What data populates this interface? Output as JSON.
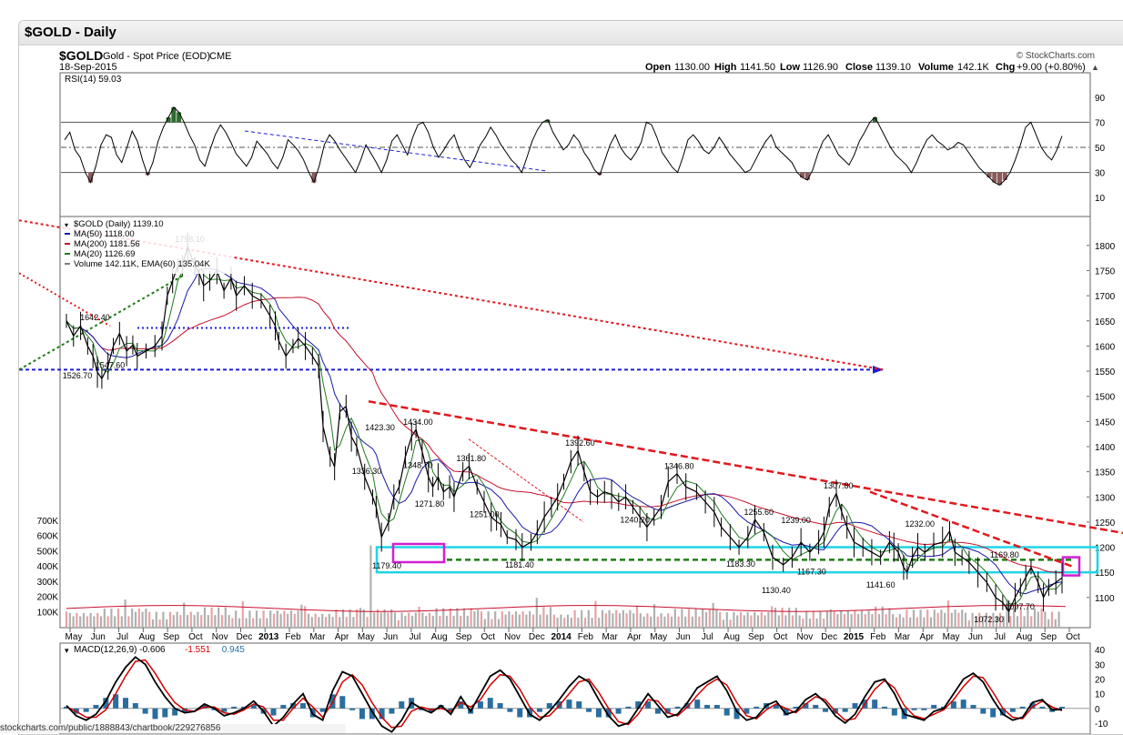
{
  "window": {
    "title": "$GOLD - Daily"
  },
  "header": {
    "symbol": "$GOLD",
    "description": "Gold - Spot Price (EOD)",
    "exchange": "CME",
    "date": "18-Sep-2015",
    "watermark": "© StockCharts.com",
    "quote": {
      "open_label": "Open",
      "open": "1130.00",
      "high_label": "High",
      "high": "1141.50",
      "low_label": "Low",
      "low": "1126.90",
      "close_label": "Close",
      "close": "1139.10",
      "volume_label": "Volume",
      "volume": "142.1K",
      "chg_label": "Chg",
      "chg": "+9.00 (+0.80%)"
    }
  },
  "status_bar": {
    "url": "stockcharts.com/public/1888843/chartbook/229276856"
  },
  "colors": {
    "price": "#000000",
    "ma50": "#1a1aa8",
    "ma200": "#c8102e",
    "ma20": "#1f7a1f",
    "trend_red": "#e0191e",
    "support_blue": "#1f1fd6",
    "support_green": "#1e7d14",
    "zone_cyan": "#1fd4e8",
    "marker_magenta": "#d21fd2",
    "volume_up": "#b0b0b0",
    "volume_down": "#e8a3a3",
    "macd": "#000000",
    "macd_signal": "#d40000",
    "histogram": "#2a6e9e"
  },
  "chart_data": [
    {
      "type": "line",
      "panel": "RSI",
      "title": "RSI(14) 59.03",
      "value": 59.03,
      "ylim": [
        0,
        100
      ],
      "yticks": [
        "90",
        "70",
        "50",
        "30",
        "10"
      ],
      "reference_lines": [
        70,
        50,
        30
      ],
      "series": [
        {
          "name": "RSI(14)",
          "values": [
            56,
            62,
            48,
            42,
            30,
            22,
            35,
            52,
            60,
            58,
            44,
            38,
            50,
            63,
            55,
            40,
            28,
            38,
            55,
            66,
            74,
            82,
            78,
            70,
            60,
            52,
            40,
            35,
            48,
            60,
            68,
            62,
            54,
            45,
            40,
            35,
            42,
            55,
            50,
            45,
            38,
            33,
            42,
            56,
            52,
            47,
            40,
            30,
            22,
            35,
            52,
            60,
            55,
            48,
            42,
            36,
            30,
            40,
            52,
            45,
            38,
            30,
            40,
            55,
            60,
            52,
            44,
            58,
            68,
            70,
            62,
            50,
            42,
            48,
            55,
            60,
            48,
            40,
            34,
            42,
            52,
            58,
            66,
            60,
            52,
            46,
            40,
            36,
            30,
            42,
            55,
            64,
            70,
            72,
            62,
            55,
            48,
            52,
            60,
            55,
            46,
            40,
            32,
            28,
            40,
            52,
            60,
            50,
            44,
            40,
            46,
            54,
            70,
            68,
            58,
            46,
            40,
            34,
            30,
            42,
            56,
            60,
            55,
            48,
            45,
            50,
            58,
            52,
            45,
            40,
            35,
            30,
            32,
            40,
            48,
            55,
            60,
            50,
            46,
            42,
            38,
            30,
            26,
            24,
            32,
            45,
            55,
            60,
            52,
            44,
            40,
            36,
            44,
            55,
            62,
            70,
            74,
            66,
            58,
            50,
            44,
            40,
            36,
            30,
            38,
            48,
            56,
            60,
            55,
            52,
            48,
            50,
            54,
            52,
            46,
            40,
            34,
            30,
            26,
            22,
            20,
            24,
            30,
            40,
            52,
            66,
            70,
            60,
            50,
            44,
            40,
            48,
            59.03
          ]
        }
      ],
      "dashed_trendline": "blue"
    },
    {
      "type": "line",
      "panel": "Price",
      "title": "$GOLD (Daily) 1139.10",
      "ylim": [
        1040,
        1825
      ],
      "yticks": [
        "1800",
        "1750",
        "1700",
        "1650",
        "1600",
        "1550",
        "1500",
        "1450",
        "1400",
        "1350",
        "1300",
        "1250",
        "1200",
        "1150",
        "1100"
      ],
      "x_labels": [
        "May",
        "Jun",
        "Jul",
        "Aug",
        "Sep",
        "Oct",
        "Nov",
        "Dec",
        "2013",
        "Feb",
        "Mar",
        "Apr",
        "May",
        "Jun",
        "Jul",
        "Aug",
        "Sep",
        "Oct",
        "Nov",
        "Dec",
        "2014",
        "Feb",
        "Mar",
        "Apr",
        "May",
        "Jun",
        "Jul",
        "Aug",
        "Sep",
        "Oct",
        "Nov",
        "Dec",
        "2015",
        "Feb",
        "Mar",
        "Apr",
        "May",
        "Jun",
        "Jul",
        "Aug",
        "Sep",
        "Oct"
      ],
      "legend": [
        {
          "label": "$GOLD (Daily) 1139.10",
          "color": "#000000"
        },
        {
          "label": "MA(50) 1118.00",
          "color": "#1a1aa8"
        },
        {
          "label": "MA(200) 1181.56",
          "color": "#c8102e"
        },
        {
          "label": "MA(20) 1126.69",
          "color": "#1f7a1f"
        },
        {
          "label": "Volume 142.11K, EMA(60) 135.04K",
          "color": "#7f7f7f"
        }
      ],
      "series": [
        {
          "name": "$GOLD (Daily)",
          "x": [
            0,
            8,
            16,
            24,
            30,
            35,
            40,
            47,
            53,
            60,
            68,
            75,
            80,
            90,
            100,
            108,
            114,
            120,
            126,
            131,
            137,
            145,
            150,
            155,
            162,
            170,
            178,
            186,
            192,
            201,
            210,
            220,
            230,
            236,
            240,
            248,
            256,
            262,
            270,
            278,
            285,
            290,
            298,
            303,
            309,
            316,
            322,
            328,
            337,
            346,
            350,
            356,
            364,
            370,
            376,
            383,
            390,
            395,
            402,
            409,
            414,
            420,
            426,
            433,
            438,
            448,
            455,
            464,
            472,
            480,
            486,
            491,
            498,
            508,
            515,
            525,
            532,
            540,
            548,
            555,
            562,
            570,
            578,
            585,
            592,
            600,
            608,
            616,
            624,
            632,
            640,
            648,
            656,
            664,
            672,
            680,
            690,
            700,
            712,
            722,
            732,
            740,
            750,
            760,
            770,
            778,
            788,
            798,
            810,
            820,
            830,
            840,
            850,
            856,
            862,
            870,
            876,
            882,
            890,
            900,
            910,
            920,
            930,
            935,
            940,
            946,
            950,
            956,
            962,
            970,
            980,
            990,
            998,
            1004,
            1012,
            1020,
            1030,
            1040,
            1050,
            1058,
            1065,
            1072,
            1078,
            1084,
            1090,
            1098,
            1104,
            1110,
            1118,
            1125
          ],
          "values": [
            1650,
            1620,
            1640,
            1600,
            1580,
            1548,
            1535,
            1560,
            1600,
            1625,
            1590,
            1602,
            1580,
            1590,
            1600,
            1620,
            1700,
            1730,
            1760,
            1760,
            1798,
            1760,
            1745,
            1720,
            1730,
            1750,
            1710,
            1735,
            1700,
            1720,
            1700,
            1690,
            1660,
            1640,
            1610,
            1580,
            1600,
            1615,
            1600,
            1580,
            1560,
            1440,
            1380,
            1360,
            1470,
            1480,
            1420,
            1400,
            1340,
            1300,
            1280,
            1220,
            1250,
            1300,
            1320,
            1380,
            1420,
            1434,
            1390,
            1340,
            1320,
            1340,
            1310,
            1320,
            1300,
            1350,
            1361,
            1320,
            1290,
            1260,
            1251,
            1245,
            1220,
            1215,
            1200,
            1210,
            1230,
            1260,
            1280,
            1300,
            1330,
            1370,
            1392,
            1350,
            1310,
            1300,
            1310,
            1305,
            1290,
            1300,
            1280,
            1260,
            1240,
            1260,
            1280,
            1330,
            1346,
            1320,
            1310,
            1290,
            1270,
            1240,
            1220,
            1200,
            1220,
            1255,
            1230,
            1180,
            1165,
            1180,
            1210,
            1190,
            1210,
            1230,
            1280,
            1307,
            1270,
            1240,
            1210,
            1200,
            1190,
            1180,
            1210,
            1200,
            1190,
            1160,
            1150,
            1180,
            1200,
            1190,
            1205,
            1210,
            1232,
            1190,
            1180,
            1170,
            1150,
            1130,
            1100,
            1090,
            1072,
            1100,
            1120,
            1140,
            1160,
            1130,
            1100,
            1120,
            1130,
            1139
          ]
        },
        {
          "name": "MA(50)",
          "value": 1118.0
        },
        {
          "name": "MA(200)",
          "value": 1181.56
        },
        {
          "name": "MA(20)",
          "value": 1126.69
        }
      ],
      "annotations": [
        {
          "text": "1798.10",
          "x": 137,
          "y": 1798.1
        },
        {
          "text": "1642.40",
          "x": 30,
          "y": 1642.4
        },
        {
          "text": "1547.60",
          "x": 47,
          "y": 1547.6
        },
        {
          "text": "1526.70",
          "x": 10,
          "y": 1526.7
        },
        {
          "text": "1423.30",
          "x": 352,
          "y": 1423.3
        },
        {
          "text": "1434.00",
          "x": 395,
          "y": 1434.0
        },
        {
          "text": "1392.60",
          "x": 578,
          "y": 1392.6
        },
        {
          "text": "1346.80",
          "x": 690,
          "y": 1346.8
        },
        {
          "text": "1361.80",
          "x": 455,
          "y": 1361.8
        },
        {
          "text": "1348.70",
          "x": 395,
          "y": 1348.7
        },
        {
          "text": "1336.30",
          "x": 337,
          "y": 1336.3
        },
        {
          "text": "1307.80",
          "x": 870,
          "y": 1307.8
        },
        {
          "text": "1271.80",
          "x": 408,
          "y": 1271.8
        },
        {
          "text": "1255.60",
          "x": 780,
          "y": 1255.6
        },
        {
          "text": "1251.00",
          "x": 470,
          "y": 1251.0
        },
        {
          "text": "1240.20",
          "x": 640,
          "y": 1240.2
        },
        {
          "text": "1239.00",
          "x": 822,
          "y": 1239.0
        },
        {
          "text": "1232.00",
          "x": 962,
          "y": 1232.0
        },
        {
          "text": "1183.30",
          "x": 760,
          "y": 1183.3
        },
        {
          "text": "1181.40",
          "x": 510,
          "y": 1181.4
        },
        {
          "text": "1179.40",
          "x": 360,
          "y": 1179.4
        },
        {
          "text": "1169.80",
          "x": 1058,
          "y": 1169.8
        },
        {
          "text": "1167.30",
          "x": 840,
          "y": 1167.3
        },
        {
          "text": "1141.60",
          "x": 918,
          "y": 1141.6
        },
        {
          "text": "1130.40",
          "x": 800,
          "y": 1130.4
        },
        {
          "text": "1097.70",
          "x": 1075,
          "y": 1097.7
        },
        {
          "text": "1072.30",
          "x": 1040,
          "y": 1072.3
        }
      ],
      "volume": {
        "ylim": [
          0,
          800
        ],
        "yticks": [
          "700K",
          "600K",
          "500K",
          "400K",
          "300K",
          "200K",
          "100K"
        ],
        "ema_label": "EMA(60) 135.04K"
      }
    },
    {
      "type": "line",
      "panel": "MACD",
      "title": "MACD(12,26,9) -0.606, -1.551, 0.945",
      "legend": [
        {
          "label": "MACD(12,26,9) -0.606",
          "color": "#000000"
        },
        {
          "label": "-1.551",
          "color": "#d40000"
        },
        {
          "label": "0.945",
          "color": "#2a6e9e"
        }
      ],
      "ylim": [
        -15,
        42
      ],
      "yticks": [
        "40",
        "30",
        "20",
        "10",
        "0",
        "-10"
      ],
      "series": [
        {
          "name": "MACD",
          "values": [
            2,
            -5,
            -8,
            -4,
            5,
            18,
            28,
            35,
            30,
            18,
            8,
            0,
            -3,
            -2,
            3,
            0,
            -5,
            -3,
            0,
            5,
            -2,
            -12,
            -6,
            3,
            10,
            -4,
            -8,
            12,
            25,
            22,
            10,
            -2,
            -12,
            -16,
            -8,
            4,
            0,
            -3,
            2,
            -4,
            8,
            -2,
            10,
            22,
            26,
            20,
            8,
            -4,
            -8,
            -2,
            6,
            15,
            22,
            18,
            6,
            -5,
            -12,
            -10,
            0,
            10,
            2,
            -6,
            -4,
            4,
            14,
            18,
            22,
            12,
            -2,
            -8,
            -6,
            2,
            5,
            -4,
            -2,
            6,
            10,
            4,
            -5,
            -10,
            -4,
            8,
            18,
            20,
            10,
            -4,
            -6,
            -8,
            -2,
            0,
            10,
            20,
            24,
            18,
            6,
            -4,
            -8,
            -6,
            4,
            6,
            -1,
            -0.606
          ]
        },
        {
          "name": "Signal",
          "values": [
            1,
            -2,
            -6,
            -6,
            -1,
            10,
            22,
            32,
            33,
            24,
            13,
            4,
            -1,
            -2,
            1,
            1,
            -3,
            -4,
            -1,
            3,
            1,
            -8,
            -8,
            0,
            7,
            1,
            -6,
            4,
            18,
            23,
            16,
            4,
            -6,
            -13,
            -12,
            -2,
            1,
            -1,
            0,
            -2,
            4,
            1,
            6,
            16,
            23,
            22,
            13,
            1,
            -6,
            -5,
            2,
            10,
            18,
            20,
            11,
            0,
            -9,
            -11,
            -4,
            6,
            5,
            -3,
            -5,
            1,
            9,
            16,
            20,
            16,
            4,
            -5,
            -7,
            -1,
            3,
            0,
            -3,
            3,
            8,
            6,
            -2,
            -8,
            -7,
            3,
            13,
            19,
            14,
            2,
            -5,
            -7,
            -4,
            -1,
            6,
            15,
            22,
            21,
            11,
            0,
            -6,
            -7,
            1,
            5,
            1,
            -1.551
          ]
        }
      ]
    }
  ]
}
